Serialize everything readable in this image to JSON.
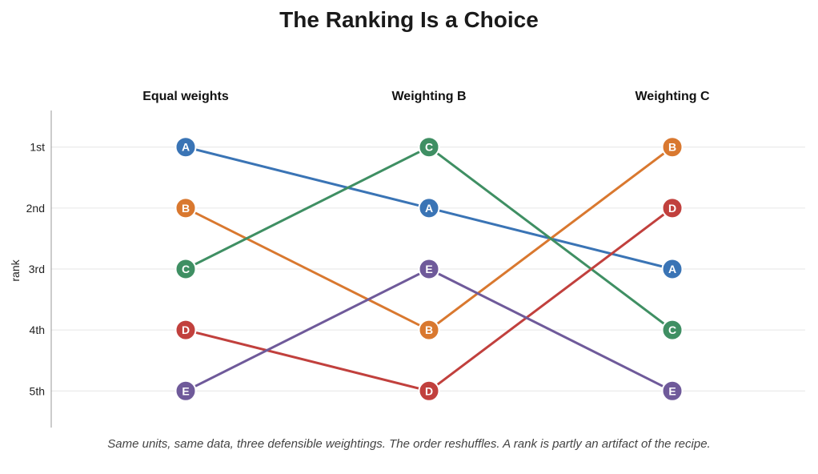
{
  "chart_data": {
    "type": "line",
    "title": "The Ranking Is a Choice",
    "ylabel": "rank",
    "categories": [
      "Equal weights",
      "Weighting B",
      "Weighting C"
    ],
    "y_ticks": [
      "1st",
      "2nd",
      "3rd",
      "4th",
      "5th"
    ],
    "ylim": [
      5.6,
      0.4
    ],
    "grid": true,
    "series": [
      {
        "name": "A",
        "values": [
          1,
          2,
          3
        ],
        "color": "#3a74b5"
      },
      {
        "name": "B",
        "values": [
          2,
          4,
          1
        ],
        "color": "#d9782f"
      },
      {
        "name": "C",
        "values": [
          3,
          1,
          4
        ],
        "color": "#3f8f63"
      },
      {
        "name": "D",
        "values": [
          4,
          5,
          2
        ],
        "color": "#c1403d"
      },
      {
        "name": "E",
        "values": [
          5,
          3,
          5
        ],
        "color": "#6f5a9a"
      }
    ],
    "caption": "Same units, same data, three defensible weightings. The order reshuffles. A rank is partly an artifact of the recipe."
  }
}
